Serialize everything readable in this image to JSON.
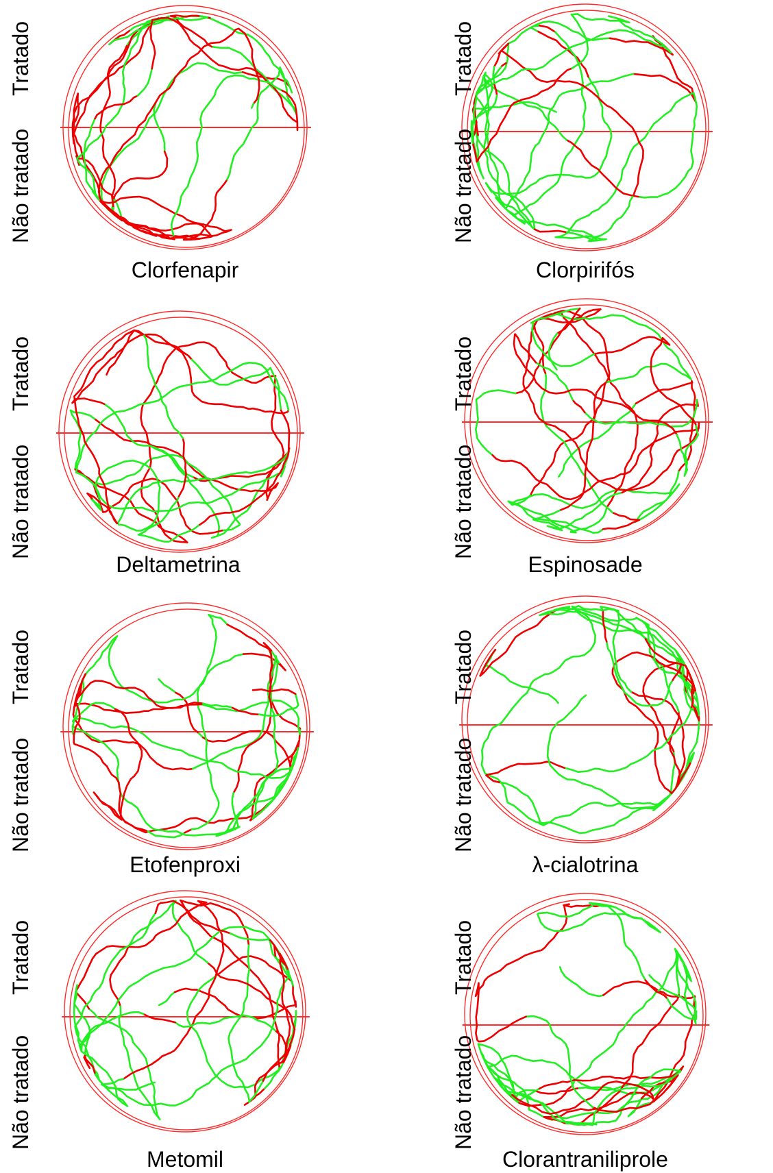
{
  "labels": {
    "treated": "Tratado",
    "untreated": "Não tratado"
  },
  "colors": {
    "arena_outline": "#ff2a2a",
    "track_treated_contact": "#ee0000",
    "track_free": "#22ee22"
  },
  "panels": [
    {
      "id": "clorfenapir",
      "name": "Clorfenapir"
    },
    {
      "id": "clorpirifos",
      "name": "Clorpirifós"
    },
    {
      "id": "deltametrina",
      "name": "Deltametrina"
    },
    {
      "id": "espinosade",
      "name": "Espinosade"
    },
    {
      "id": "etofenproxi",
      "name": "Etofenproxi"
    },
    {
      "id": "lambda-cialotrina",
      "name": "λ-cialotrina"
    },
    {
      "id": "metomil",
      "name": "Metomil"
    },
    {
      "id": "clorantraniliprole",
      "name": "Clorantraniliprole"
    }
  ]
}
